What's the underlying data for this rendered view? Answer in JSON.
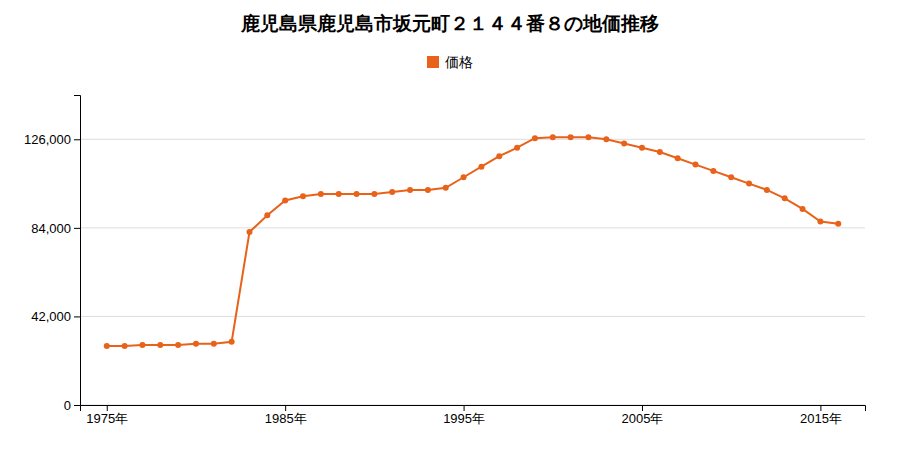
{
  "chart_data": {
    "type": "line",
    "title": "鹿児島県鹿児島市坂元町２１４４番８の地価推移",
    "x": [
      1975,
      1976,
      1977,
      1978,
      1979,
      1980,
      1981,
      1982,
      1983,
      1984,
      1985,
      1986,
      1987,
      1988,
      1989,
      1990,
      1991,
      1992,
      1993,
      1994,
      1995,
      1996,
      1997,
      1998,
      1999,
      2000,
      2001,
      2002,
      2003,
      2004,
      2005,
      2006,
      2007,
      2008,
      2009,
      2010,
      2011,
      2012,
      2013,
      2014,
      2015,
      2016
    ],
    "series": [
      {
        "name": "価格",
        "color": "#e8621a",
        "marker": "circle",
        "line_style": "solid",
        "values": [
          28000,
          28000,
          28500,
          28500,
          28500,
          29000,
          29000,
          30000,
          82000,
          90000,
          97000,
          99000,
          100000,
          100000,
          100000,
          100000,
          101000,
          102000,
          102000,
          103000,
          108000,
          113000,
          118000,
          122000,
          126500,
          127000,
          127000,
          127000,
          126000,
          124000,
          122000,
          120000,
          117000,
          114000,
          111000,
          108000,
          105000,
          102000,
          98000,
          93000,
          87000,
          86000
        ]
      }
    ],
    "xlim": [
      1973.5,
      2017.5
    ],
    "xticks": [
      {
        "value": 1975,
        "label": "1975年"
      },
      {
        "value": 1985,
        "label": "1985年"
      },
      {
        "value": 1995,
        "label": "1995年"
      },
      {
        "value": 2005,
        "label": "2005年"
      },
      {
        "value": 2015,
        "label": "2015年"
      }
    ],
    "ylim": [
      0,
      147000
    ],
    "yticks": [
      0,
      {
        "value": 42000,
        "label": "42,000"
      },
      {
        "value": 84000,
        "label": "84,000"
      },
      {
        "value": 126000,
        "label": "126,000"
      }
    ],
    "grid": true,
    "legend": "top"
  }
}
